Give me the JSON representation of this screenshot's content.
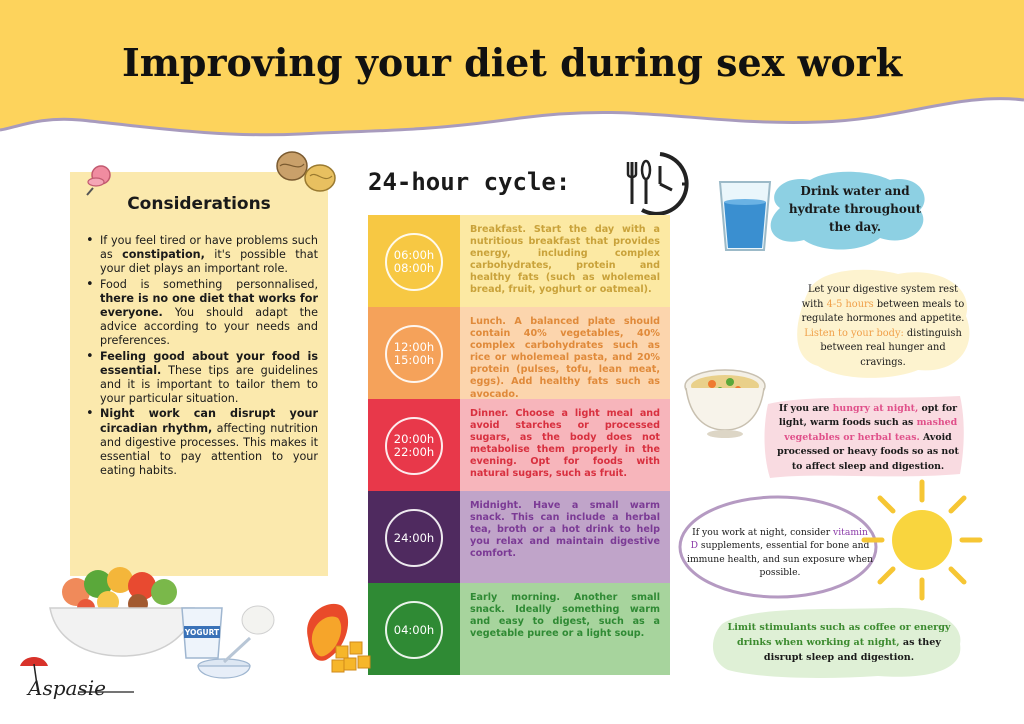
{
  "title": "Improving your diet during sex work",
  "considerations": {
    "heading": "Considerations",
    "items": [
      {
        "pre": "If you feel tired or have problems such as ",
        "bold": "constipation,",
        "post": " it's possible that your diet plays an important role."
      },
      {
        "pre": "Food is something personnalised, ",
        "bold": "there is no one diet that works for everyone.",
        "post": " You should adapt the advice according to your needs and preferences."
      },
      {
        "pre": "",
        "bold": "Feeling good about your food is essential.",
        "post": " These tips are guidelines and it is important to tailor them to your particular situation."
      },
      {
        "pre": "",
        "bold": "Night work can disrupt your circadian rhythm,",
        "post": " affecting nutrition and digestive processes. This makes it essential to pay attention to your eating habits."
      }
    ]
  },
  "cycle": {
    "heading": "24-hour cycle:",
    "rows": [
      {
        "time1": "06:00h",
        "time2": "08:00h",
        "label": "Breakfast.",
        "text": " Start the day with a nutritious breakfast that provides energy, including complex carbohydrates, protein and healthy fats (such as wholemeal bread, fruit, yoghurt or oatmeal).",
        "circle_color": "#f7c843",
        "bg_color": "#fce9a3",
        "text_color": "#c9a23a"
      },
      {
        "time1": "12:00h",
        "time2": "15:00h",
        "label": "Lunch.",
        "text": " A balanced plate should contain 40% vegetables, 40% complex carbohydrates such as rice or wholemeal pasta, and 20% protein (pulses, tofu, lean meat, eggs). Add healthy fats such as avocado.",
        "circle_color": "#f5a25a",
        "bg_color": "#fcd5ad",
        "text_color": "#e08a3a"
      },
      {
        "time1": "20:00h",
        "time2": "22:00h",
        "label": "Dinner.",
        "text": " Choose a light meal and avoid starches or processed sugars, as the body does not metabolise them properly in the evening. Opt for foods with natural sugars, such as fruit.",
        "circle_color": "#e8384a",
        "bg_color": "#f7b5bb",
        "text_color": "#d8303f"
      },
      {
        "time1": "24:00h",
        "time2": "",
        "label": "Midnight.",
        "text": " Have a small warm snack. This can include a herbal tea, broth or a hot drink to help you relax and maintain digestive comfort.",
        "circle_color": "#4f2a5f",
        "bg_color": "#c0a4c9",
        "text_color": "#7b3a95"
      },
      {
        "time1": "04:00h",
        "time2": "",
        "label": "Early morning.",
        "text": " Another small snack. Ideally something warm and easy to digest, such as a vegetable puree or a light soup.",
        "circle_color": "#2f8a34",
        "bg_color": "#a7d49d",
        "text_color": "#2f8a34"
      }
    ]
  },
  "tips": {
    "water": "Drink water and hydrate throughout the day.",
    "rest": {
      "a": "Let your digestive system rest with ",
      "b": "4-5 hours",
      "c": " between meals to regulate hormones and appetite. ",
      "d": "Listen to your body:",
      "e": " distinguish between real hunger and cravings."
    },
    "hungry": {
      "a": "If you are ",
      "b": "hungry at night,",
      "c": " opt for light, warm foods such as ",
      "d": "mashed vegetables or herbal teas.",
      "e": " Avoid processed or heavy foods so as not to affect sleep and digestion."
    },
    "vitamin": {
      "a": "If you work at night, consider ",
      "b": "vitamin D",
      "c": " supplements, essential for bone and immune health, and sun exposure when possible."
    },
    "limit": {
      "a": "Limit stimulants such as coffee or energy drinks when working at night,",
      "b": " as they disrupt sleep and digestion."
    }
  },
  "yogurt_label": "YOGURT",
  "logo": "Aspasie",
  "colors": {
    "header": "#fdd35c",
    "header_line": "#a89bbd",
    "panel": "#fbe9ad",
    "orange": "#f0a04a",
    "pink": "#e0508a",
    "purple": "#8a3aa8",
    "green": "#3b8a2e"
  }
}
